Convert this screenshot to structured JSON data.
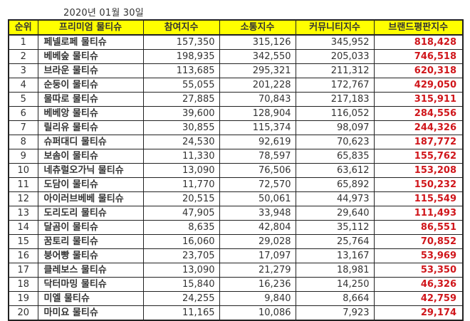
{
  "title": "2020년 01월 30일",
  "table": {
    "headers": [
      "순위",
      "프리미엄 물티슈",
      "참여지수",
      "소통지수",
      "커뮤니티지수",
      "브랜드평판지수"
    ],
    "rows": [
      {
        "rank": "1",
        "name": "페넬로페 물티슈",
        "participation": "157,350",
        "communication": "315,126",
        "community": "345,952",
        "brand": "818,428"
      },
      {
        "rank": "2",
        "name": "베베숲 물티슈",
        "participation": "198,935",
        "communication": "342,550",
        "community": "205,033",
        "brand": "746,518"
      },
      {
        "rank": "3",
        "name": "브라운 물티슈",
        "participation": "113,685",
        "communication": "295,321",
        "community": "211,312",
        "brand": "620,318"
      },
      {
        "rank": "4",
        "name": "순둥이 물티슈",
        "participation": "55,055",
        "communication": "201,228",
        "community": "172,767",
        "brand": "429,050"
      },
      {
        "rank": "5",
        "name": "물따로 물티슈",
        "participation": "27,885",
        "communication": "70,843",
        "community": "217,183",
        "brand": "315,911"
      },
      {
        "rank": "6",
        "name": "베베앙 물티슈",
        "participation": "39,600",
        "communication": "128,904",
        "community": "116,052",
        "brand": "284,556"
      },
      {
        "rank": "7",
        "name": "릴리유 물티슈",
        "participation": "30,855",
        "communication": "115,374",
        "community": "98,097",
        "brand": "244,326"
      },
      {
        "rank": "8",
        "name": "슈퍼대디 물티슈",
        "participation": "24,530",
        "communication": "92,619",
        "community": "70,623",
        "brand": "187,772"
      },
      {
        "rank": "9",
        "name": "보솜이 물티슈",
        "participation": "11,330",
        "communication": "78,597",
        "community": "65,835",
        "brand": "155,762"
      },
      {
        "rank": "10",
        "name": "네츄럴오가닉 물티슈",
        "participation": "13,090",
        "communication": "76,506",
        "community": "63,612",
        "brand": "153,208"
      },
      {
        "rank": "11",
        "name": "도담이 물티슈",
        "participation": "11,770",
        "communication": "72,570",
        "community": "65,892",
        "brand": "150,232"
      },
      {
        "rank": "12",
        "name": "아이러브베베 물티슈",
        "participation": "20,515",
        "communication": "50,061",
        "community": "44,973",
        "brand": "115,549"
      },
      {
        "rank": "13",
        "name": "도리도리 물티슈",
        "participation": "47,905",
        "communication": "33,948",
        "community": "29,640",
        "brand": "111,493"
      },
      {
        "rank": "14",
        "name": "달곰이 물티슈",
        "participation": "8,635",
        "communication": "42,804",
        "community": "35,112",
        "brand": "86,551"
      },
      {
        "rank": "15",
        "name": "꿈토리 물티슈",
        "participation": "16,060",
        "communication": "29,028",
        "community": "25,764",
        "brand": "70,852"
      },
      {
        "rank": "16",
        "name": "붕어빵 물티슈",
        "participation": "23,705",
        "communication": "17,097",
        "community": "13,167",
        "brand": "53,969"
      },
      {
        "rank": "17",
        "name": "클레보스 물티슈",
        "participation": "13,090",
        "communication": "21,279",
        "community": "18,981",
        "brand": "53,350"
      },
      {
        "rank": "18",
        "name": "닥터마밍 물티슈",
        "participation": "15,840",
        "communication": "16,236",
        "community": "14,250",
        "brand": "46,326"
      },
      {
        "rank": "19",
        "name": "미엘 물티슈",
        "participation": "24,255",
        "communication": "9,840",
        "community": "8,664",
        "brand": "42,759"
      },
      {
        "rank": "20",
        "name": "마미요 물티슈",
        "participation": "11,165",
        "communication": "10,086",
        "community": "7,923",
        "brand": "29,174"
      }
    ]
  },
  "colors": {
    "header_bg": "#ffff00",
    "brand_value": "#d0161b",
    "border": "#222222"
  }
}
